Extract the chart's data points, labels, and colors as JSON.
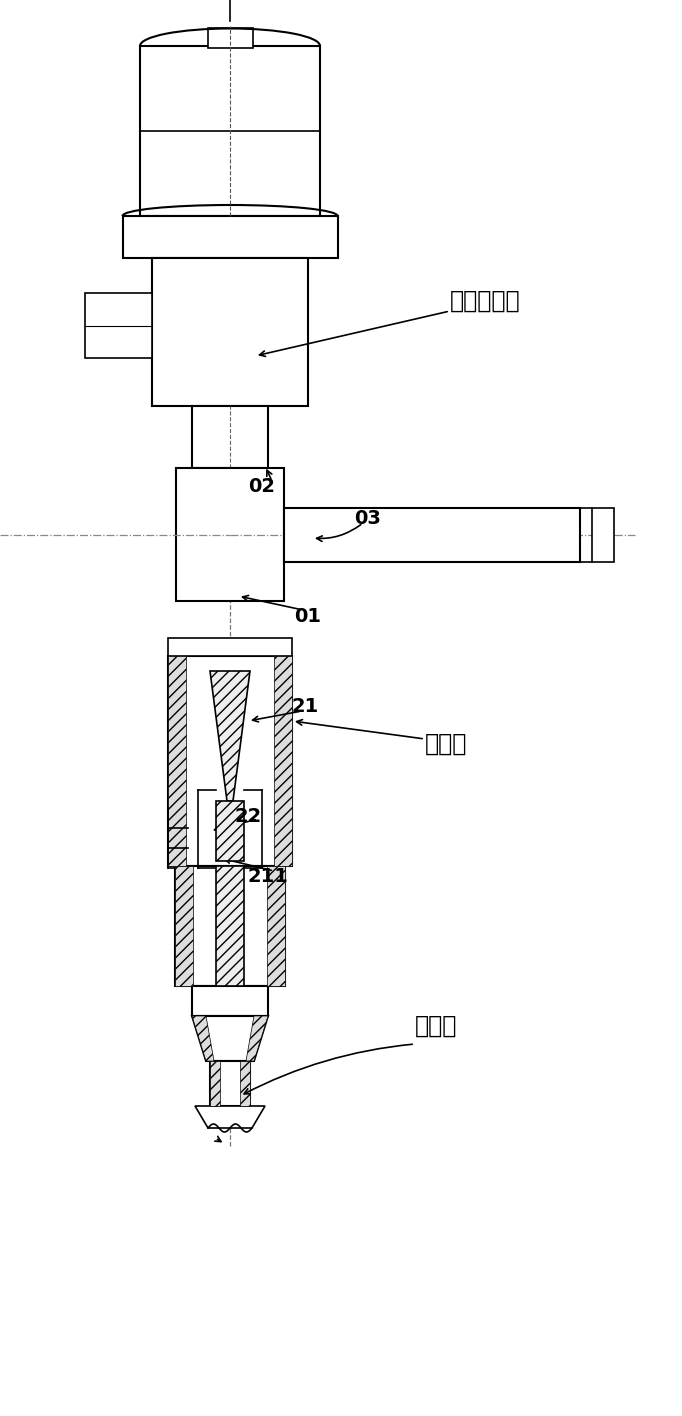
{
  "bg_color": "#ffffff",
  "line_color": "#000000",
  "fig_width": 6.82,
  "fig_height": 14.16,
  "labels": {
    "electronic_expansion_valve": "电子膨胀阀",
    "flow_divider": "分流器",
    "copper_pipe": "铜配管",
    "ref_01": "01",
    "ref_02": "02",
    "ref_03": "03",
    "ref_21": "21",
    "ref_22": "22",
    "ref_211": "211"
  }
}
